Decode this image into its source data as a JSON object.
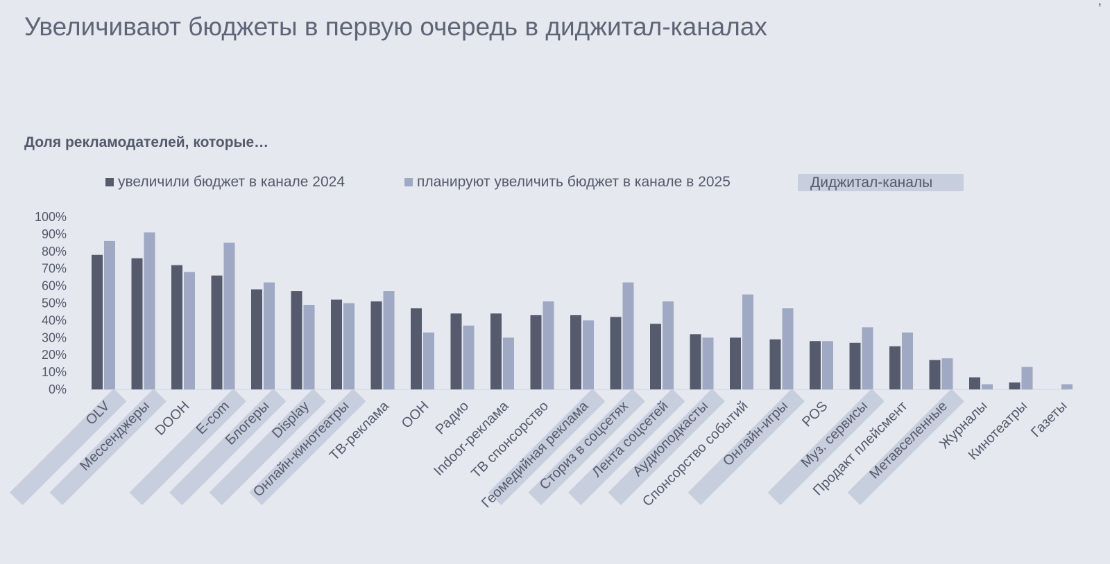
{
  "title": "Увеличивают бюджеты в первую очередь в диджитал-каналах",
  "subtitle": "Доля рекламодателей, которые…",
  "colors": {
    "s2024": "#555b6d",
    "s2025": "#9fa9c4",
    "digital_band": "#c7cedd",
    "background": "#e6e8ef"
  },
  "legend": {
    "s2024": "увеличили бюджет в канале 2024",
    "s2025": "планируют увеличить бюджет в канале в 2025",
    "digital": "Диджитал-каналы"
  },
  "chart_data": {
    "type": "bar",
    "title": "",
    "categories": [
      "OLV",
      "Мессенджеры",
      "DOOH",
      "E-com",
      "Блогеры",
      "Display",
      "Онлайн-кинотеатры",
      "ТВ-реклама",
      "OOH",
      "Радио",
      "Indoor-реклама",
      "ТВ спонсорство",
      "Геомедийная реклама",
      "Сториз в соцсетях",
      "Лента соцсетей",
      "Аудиоподкасты",
      "Спонсорство событий",
      "Онлайн-игры",
      "POS",
      "Муз. сервисы",
      "Продакт плейсмент",
      "Метавселенные",
      "Журналы",
      "Кинотеатры",
      "Газеты"
    ],
    "digital": [
      true,
      true,
      false,
      true,
      true,
      true,
      true,
      false,
      false,
      false,
      false,
      false,
      true,
      true,
      true,
      true,
      false,
      true,
      false,
      true,
      false,
      true,
      false,
      false,
      false
    ],
    "series": [
      {
        "name": "увеличили бюджет в канале 2024",
        "values": [
          78,
          76,
          72,
          66,
          58,
          57,
          52,
          51,
          47,
          44,
          44,
          43,
          43,
          42,
          38,
          32,
          30,
          29,
          28,
          27,
          25,
          17,
          7,
          4,
          0
        ]
      },
      {
        "name": "планируют увеличить бюджет в канале в 2025",
        "values": [
          86,
          91,
          68,
          85,
          62,
          49,
          50,
          57,
          33,
          37,
          30,
          51,
          40,
          62,
          51,
          30,
          55,
          47,
          28,
          36,
          33,
          18,
          3,
          13,
          3
        ]
      }
    ],
    "y_ticks": [
      "0%",
      "10%",
      "20%",
      "30%",
      "40%",
      "50%",
      "60%",
      "70%",
      "80%",
      "90%",
      "100%"
    ],
    "ylim": [
      0,
      100
    ],
    "grid": false,
    "legend_position": "top"
  }
}
